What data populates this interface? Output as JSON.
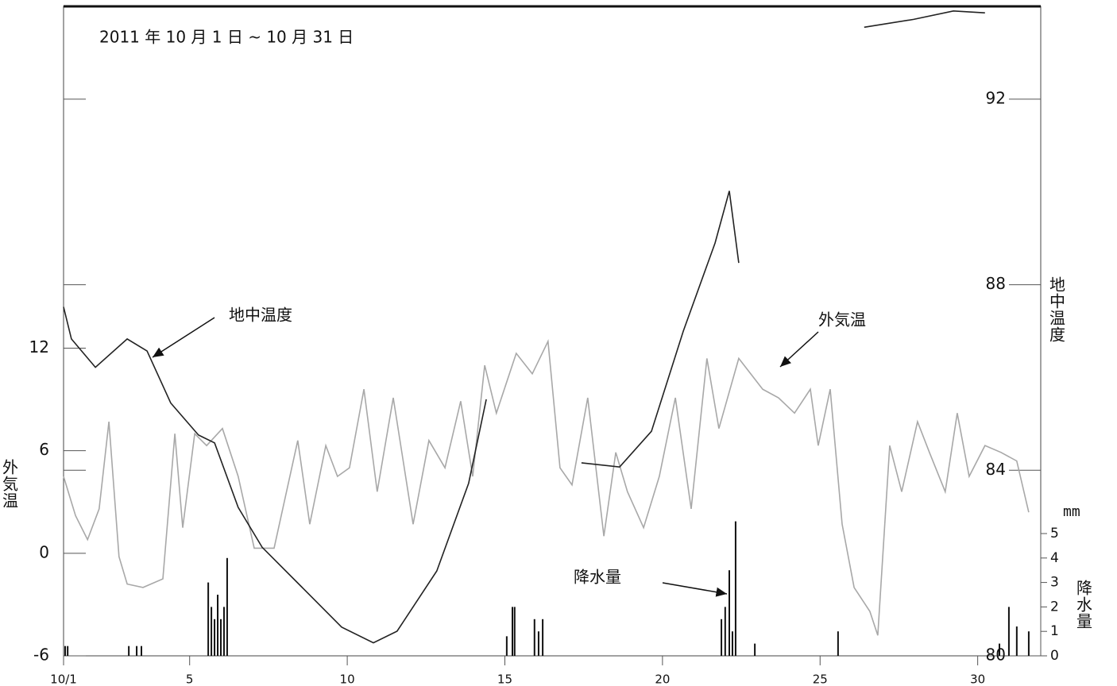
{
  "chart_data": {
    "type": "line",
    "title": "2011 年 10 月 1 日 ~ 10 月 31 日",
    "ylabel": "外気温",
    "y2label": "地中温度",
    "y3label": "降水量",
    "y3unit": "mm",
    "xlim": [
      1,
      32
    ],
    "xticks": [
      {
        "value": 1,
        "label": "10/1"
      },
      5,
      10,
      15,
      20,
      25,
      30
    ],
    "ylim": [
      -6,
      32
    ],
    "yticks": [
      -6,
      0,
      6,
      12
    ],
    "y2lim": [
      80,
      94
    ],
    "y2ticks": [
      80,
      84,
      88,
      92
    ],
    "y3lim": [
      0,
      5
    ],
    "y3ticks": [
      0,
      1,
      2,
      3,
      4,
      5
    ],
    "series": [
      {
        "name": "外気温",
        "color": "#a8a8a8",
        "x": [
          1.0,
          1.38,
          1.76,
          2.13,
          2.44,
          2.76,
          3.02,
          3.52,
          4.15,
          4.53,
          4.78,
          5.16,
          5.54,
          6.04,
          6.54,
          7.05,
          7.68,
          8.43,
          8.81,
          9.32,
          9.69,
          10.07,
          10.53,
          10.95,
          11.46,
          12.09,
          12.59,
          13.1,
          13.6,
          13.98,
          14.36,
          14.73,
          15.36,
          15.87,
          16.37,
          16.75,
          17.13,
          17.63,
          18.14,
          18.52,
          18.89,
          19.4,
          19.9,
          20.41,
          20.91,
          21.41,
          21.79,
          22.42,
          23.18,
          23.68,
          24.19,
          24.69,
          24.94,
          25.32,
          25.7,
          26.08,
          26.58,
          26.83,
          27.21,
          27.59,
          28.09,
          28.47,
          28.97,
          29.35,
          29.73,
          30.23,
          30.74,
          31.24,
          31.62
        ],
        "values": [
          4.5,
          2.2,
          0.8,
          2.6,
          7.7,
          -0.2,
          -1.8,
          -2.0,
          -1.5,
          7.0,
          1.5,
          7.0,
          6.3,
          7.3,
          4.5,
          0.3,
          0.3,
          6.6,
          1.7,
          6.3,
          4.5,
          5.0,
          9.6,
          3.6,
          9.1,
          1.7,
          6.6,
          5.0,
          8.9,
          4.5,
          11.0,
          8.2,
          11.7,
          10.5,
          12.4,
          5.0,
          4.0,
          9.1,
          1.0,
          5.9,
          3.6,
          1.5,
          4.5,
          9.1,
          2.6,
          11.4,
          7.3,
          11.4,
          9.6,
          9.1,
          8.2,
          9.6,
          6.3,
          9.6,
          1.7,
          -2.0,
          -3.4,
          -4.8,
          6.3,
          3.6,
          7.7,
          5.9,
          3.6,
          8.2,
          4.5,
          6.3,
          5.9,
          5.4,
          2.4
        ]
      },
      {
        "name": "地中温度",
        "color": "#222222",
        "axis": "y2",
        "x": [
          1.0,
          1.25,
          2.01,
          3.02,
          3.65,
          4.4,
          5.28,
          5.79,
          6.54,
          7.3,
          8.56,
          9.82,
          10.83,
          11.58,
          12.84,
          13.85,
          14.41,
          null,
          17.43,
          18.64,
          19.65,
          20.66,
          21.67,
          22.12,
          22.42,
          null,
          26.4,
          27.97,
          29.23,
          30.23
        ],
        "values": [
          87.52,
          86.83,
          86.22,
          86.83,
          86.57,
          85.45,
          84.76,
          84.59,
          83.2,
          82.34,
          81.48,
          80.62,
          80.28,
          80.53,
          81.83,
          83.72,
          85.53,
          null,
          84.16,
          84.07,
          84.84,
          87.0,
          88.9,
          90.02,
          88.47,
          null,
          93.55,
          93.72,
          93.9,
          93.86
        ]
      },
      {
        "name": "降水量",
        "color": "#111111",
        "axis": "y3",
        "type": "bar",
        "x": [
          1.05,
          1.13,
          3.07,
          3.32,
          3.47,
          5.59,
          5.69,
          5.79,
          5.89,
          5.99,
          6.09,
          6.19,
          15.06,
          15.24,
          15.31,
          15.94,
          16.07,
          16.2,
          21.87,
          21.99,
          22.12,
          22.22,
          22.32,
          22.93,
          25.57,
          30.69,
          30.99,
          31.24,
          31.62
        ],
        "values": [
          0.4,
          0.4,
          0.4,
          0.4,
          0.4,
          3,
          2,
          1.5,
          2.5,
          1.5,
          2,
          4,
          0.8,
          2,
          2,
          1.5,
          1,
          1.5,
          1.5,
          2,
          3.5,
          1,
          5.5,
          0.5,
          1,
          0.5,
          2,
          1.2,
          1
        ]
      }
    ]
  }
}
